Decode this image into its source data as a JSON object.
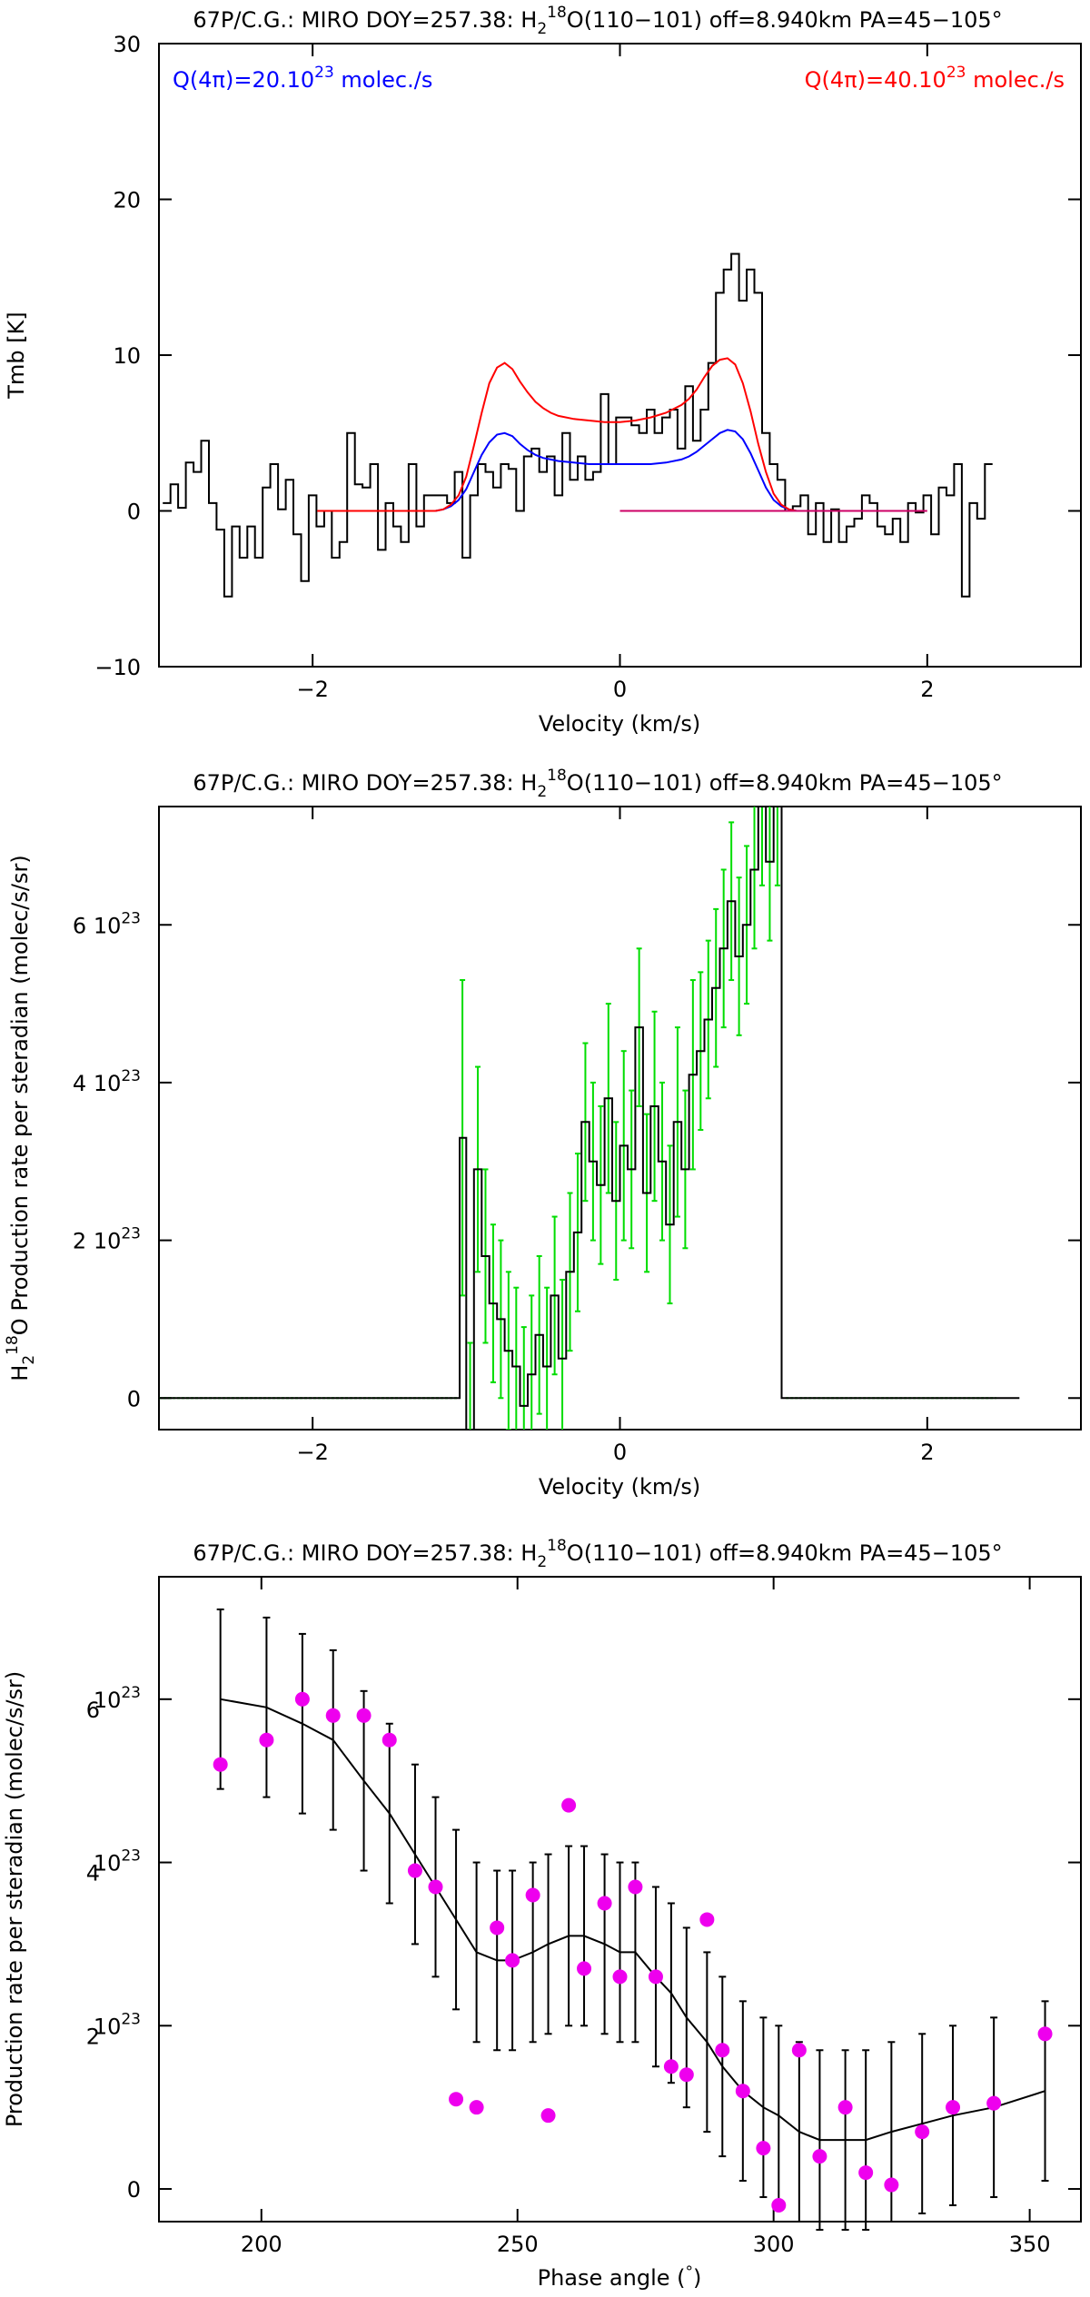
{
  "figure": {
    "title_prefix": "67P/C.G.: MIRO DOY=257.38: H",
    "title_sub": "2",
    "title_sup": "18",
    "title_suffix": "O(110−101) off=8.940km PA=45−105°"
  },
  "chart_data": [
    {
      "type": "line",
      "xlabel": "Velocity (km/s)",
      "ylabel": "Tmb [K]",
      "xlim": [
        -3,
        3
      ],
      "ylim": [
        -10,
        30
      ],
      "xticks": [
        -2,
        0,
        2
      ],
      "xtick_labels": [
        "−2",
        "0",
        "2"
      ],
      "yticks": [
        -10,
        0,
        10,
        20,
        30
      ],
      "ytick_labels": [
        "−10",
        "0",
        "10",
        "20",
        "30"
      ],
      "annotations": [
        {
          "base": "Q(4π)=20.10",
          "sup": "23",
          "rest": " molec./s",
          "color": "#0000ff"
        },
        {
          "base": "Q(4π)=40.10",
          "sup": "23",
          "rest": " molec./s",
          "color": "#ff0000"
        }
      ],
      "series": [
        {
          "style": "step",
          "color": "#000000",
          "x": [
            -2.95,
            -2.9,
            -2.85,
            -2.8,
            -2.75,
            -2.7,
            -2.65,
            -2.6,
            -2.55,
            -2.5,
            -2.45,
            -2.4,
            -2.35,
            -2.3,
            -2.25,
            -2.2,
            -2.15,
            -2.1,
            -2.05,
            -2.0,
            -1.95,
            -1.9,
            -1.85,
            -1.8,
            -1.75,
            -1.7,
            -1.65,
            -1.6,
            -1.55,
            -1.5,
            -1.45,
            -1.4,
            -1.35,
            -1.3,
            -1.25,
            -1.2,
            -1.15,
            -1.1,
            -1.05,
            -1.0,
            -0.95,
            -0.9,
            -0.85,
            -0.8,
            -0.75,
            -0.7,
            -0.65,
            -0.6,
            -0.55,
            -0.5,
            -0.45,
            -0.4,
            -0.35,
            -0.3,
            -0.25,
            -0.2,
            -0.15,
            -0.1,
            -0.05,
            0.0,
            0.05,
            0.1,
            0.15,
            0.2,
            0.25,
            0.3,
            0.35,
            0.4,
            0.45,
            0.5,
            0.55,
            0.6,
            0.65,
            0.7,
            0.75,
            0.8,
            0.85,
            0.9,
            0.95,
            1.0,
            1.05,
            1.1,
            1.15,
            1.2,
            1.25,
            1.3,
            1.35,
            1.4,
            1.45,
            1.5,
            1.55,
            1.6,
            1.65,
            1.7,
            1.75,
            1.8,
            1.85,
            1.9,
            1.95,
            2.0,
            2.05,
            2.1,
            2.15,
            2.2,
            2.25,
            2.3,
            2.35,
            2.4
          ],
          "values": [
            0.5,
            1.7,
            0.2,
            3.1,
            2.5,
            4.5,
            0.5,
            -1.2,
            -5.5,
            -1.0,
            -3.0,
            -1.0,
            -3.0,
            1.5,
            3.0,
            0.1,
            2.0,
            -1.5,
            -4.5,
            1.0,
            -1.0,
            0.0,
            -3.0,
            -2.0,
            5.0,
            1.7,
            1.5,
            3.0,
            -2.5,
            0.5,
            -1.0,
            -2.0,
            3.0,
            -1.0,
            1.0,
            1.0,
            1.0,
            0.5,
            2.5,
            -3.0,
            1.0,
            3.0,
            2.5,
            1.5,
            3.0,
            2.7,
            0.0,
            3.5,
            4.0,
            2.5,
            3.5,
            1.0,
            5.0,
            2.0,
            3.5,
            2.0,
            2.5,
            7.5,
            3.0,
            6.0,
            6.0,
            5.5,
            5.0,
            6.5,
            5.0,
            6.0,
            6.5,
            4.0,
            8.0,
            4.5,
            6.5,
            9.5,
            14.0,
            15.5,
            16.5,
            13.5,
            15.5,
            14.0,
            5.0,
            3.0,
            2.0,
            0.0,
            0.3,
            1.0,
            -1.5,
            0.5,
            -2.0,
            0.1,
            -2.0,
            -1.0,
            -0.5,
            1.0,
            0.5,
            -1.0,
            -1.5,
            -0.5,
            -2.0,
            0.5,
            -0.1,
            1.0,
            -1.5,
            1.5,
            1.0,
            3.0,
            -5.5,
            0.5,
            -0.5,
            3.0
          ]
        },
        {
          "style": "line",
          "color": "#0000ff",
          "x": [
            -1.2,
            -1.15,
            -1.1,
            -1.05,
            -1.0,
            -0.95,
            -0.9,
            -0.85,
            -0.8,
            -0.75,
            -0.7,
            -0.65,
            -0.6,
            -0.55,
            -0.5,
            -0.45,
            -0.4,
            -0.3,
            -0.2,
            -0.1,
            0.0,
            0.1,
            0.2,
            0.3,
            0.4,
            0.45,
            0.5,
            0.55,
            0.6,
            0.65,
            0.7,
            0.75,
            0.8,
            0.85,
            0.9,
            0.95,
            1.0,
            1.05,
            1.1,
            1.15,
            1.2
          ],
          "values": [
            0.0,
            0.1,
            0.3,
            0.7,
            1.4,
            2.5,
            3.6,
            4.4,
            4.9,
            5.0,
            4.8,
            4.3,
            3.9,
            3.6,
            3.4,
            3.3,
            3.2,
            3.1,
            3.0,
            3.0,
            3.0,
            3.0,
            3.0,
            3.1,
            3.3,
            3.5,
            3.8,
            4.2,
            4.6,
            5.0,
            5.2,
            5.1,
            4.6,
            3.7,
            2.6,
            1.5,
            0.7,
            0.3,
            0.1,
            0.0,
            0.0
          ]
        },
        {
          "style": "line",
          "color": "#ff0000",
          "x": [
            -1.2,
            -1.15,
            -1.1,
            -1.05,
            -1.0,
            -0.95,
            -0.9,
            -0.85,
            -0.8,
            -0.75,
            -0.7,
            -0.65,
            -0.6,
            -0.55,
            -0.5,
            -0.45,
            -0.4,
            -0.3,
            -0.2,
            -0.1,
            0.0,
            0.1,
            0.2,
            0.3,
            0.4,
            0.45,
            0.5,
            0.55,
            0.6,
            0.65,
            0.7,
            0.75,
            0.8,
            0.85,
            0.9,
            0.95,
            1.0,
            1.05,
            1.1,
            1.15,
            1.2
          ],
          "values": [
            0.0,
            0.1,
            0.4,
            1.0,
            2.2,
            4.2,
            6.3,
            8.2,
            9.2,
            9.5,
            9.1,
            8.3,
            7.6,
            7.0,
            6.6,
            6.3,
            6.1,
            5.9,
            5.8,
            5.7,
            5.7,
            5.8,
            6.0,
            6.3,
            6.8,
            7.2,
            7.8,
            8.6,
            9.3,
            9.7,
            9.8,
            9.4,
            8.2,
            6.4,
            4.3,
            2.5,
            1.1,
            0.4,
            0.1,
            0.0,
            0.0
          ]
        },
        {
          "style": "line",
          "color": "#ff0000",
          "x": [
            -1.97,
            -1.2
          ],
          "values": [
            0.0,
            0.0
          ]
        },
        {
          "style": "line",
          "color": "#cc0066",
          "x": [
            0.0,
            2.0
          ],
          "values": [
            0.0,
            0.0
          ]
        }
      ]
    },
    {
      "type": "line",
      "xlabel": "Velocity (km/s)",
      "ylabel_pre": "H",
      "ylabel_sub": "2",
      "ylabel_sup": "18",
      "ylabel_post": "O Production rate per steradian (molec/s/sr)",
      "xlim": [
        -3,
        3
      ],
      "ylim": [
        -0.4,
        7.5
      ],
      "xticks": [
        -2,
        0,
        2
      ],
      "xtick_labels": [
        "−2",
        "0",
        "2"
      ],
      "yticks": [
        0,
        2,
        4,
        6
      ],
      "ytick_labels": [
        {
          "pre": "0",
          "sup": ""
        },
        {
          "pre": "2 10",
          "sup": "23"
        },
        {
          "pre": "4 10",
          "sup": "23"
        },
        {
          "pre": "6 10",
          "sup": "23"
        }
      ],
      "series": [
        {
          "style": "step",
          "color": "#000000",
          "x": [
            -2.95,
            -2.5,
            -2.0,
            -1.5,
            -1.06,
            -1.025,
            -0.975,
            -0.925,
            -0.875,
            -0.825,
            -0.775,
            -0.725,
            -0.675,
            -0.625,
            -0.575,
            -0.525,
            -0.475,
            -0.425,
            -0.375,
            -0.325,
            -0.275,
            -0.225,
            -0.175,
            -0.125,
            -0.075,
            -0.025,
            0.025,
            0.075,
            0.125,
            0.175,
            0.225,
            0.275,
            0.325,
            0.375,
            0.425,
            0.475,
            0.525,
            0.575,
            0.625,
            0.675,
            0.725,
            0.775,
            0.825,
            0.875,
            0.925,
            0.975,
            1.025,
            1.08,
            1.5,
            2.0,
            2.4
          ],
          "values": [
            0,
            0,
            0,
            0,
            0,
            3.3,
            -0.5,
            2.9,
            1.8,
            1.2,
            1.0,
            0.6,
            0.4,
            -0.1,
            0.3,
            0.8,
            0.4,
            1.3,
            0.5,
            1.6,
            2.1,
            3.5,
            3.0,
            2.7,
            3.8,
            2.5,
            3.2,
            2.9,
            4.7,
            2.6,
            3.7,
            3.0,
            2.2,
            3.5,
            2.9,
            4.1,
            4.4,
            4.8,
            5.2,
            5.7,
            6.3,
            5.6,
            6.0,
            6.7,
            7.5,
            6.8,
            7.5,
            0,
            0,
            0,
            0
          ]
        }
      ],
      "errorbars": {
        "color": "#00dd00",
        "x": [
          -1.025,
          -0.975,
          -0.925,
          -0.875,
          -0.825,
          -0.775,
          -0.725,
          -0.675,
          -0.625,
          -0.575,
          -0.525,
          -0.475,
          -0.425,
          -0.375,
          -0.325,
          -0.275,
          -0.225,
          -0.175,
          -0.125,
          -0.075,
          -0.025,
          0.025,
          0.075,
          0.125,
          0.175,
          0.225,
          0.275,
          0.325,
          0.375,
          0.425,
          0.475,
          0.525,
          0.575,
          0.625,
          0.675,
          0.725,
          0.775,
          0.825,
          0.875,
          0.925,
          0.975,
          1.025
        ],
        "center": [
          3.3,
          -0.5,
          2.9,
          1.8,
          1.2,
          1.0,
          0.6,
          0.4,
          -0.1,
          0.3,
          0.8,
          0.4,
          1.3,
          0.5,
          1.6,
          2.1,
          3.5,
          3.0,
          2.7,
          3.8,
          2.5,
          3.2,
          2.9,
          4.7,
          2.6,
          3.7,
          3.0,
          2.2,
          3.5,
          2.9,
          4.1,
          4.4,
          4.8,
          5.2,
          5.7,
          6.3,
          5.6,
          6.0,
          6.7,
          7.5,
          6.8,
          7.5
        ],
        "err": [
          2.0,
          1.2,
          1.3,
          1.1,
          1.0,
          1.0,
          1.0,
          1.0,
          1.0,
          1.0,
          1.0,
          1.0,
          1.0,
          1.0,
          1.0,
          1.0,
          1.0,
          1.0,
          1.0,
          1.2,
          1.0,
          1.2,
          1.0,
          1.0,
          1.0,
          1.2,
          1.0,
          1.0,
          1.2,
          1.0,
          1.2,
          1.0,
          1.0,
          1.0,
          1.0,
          1.0,
          1.0,
          1.0,
          1.0,
          1.0,
          1.0,
          1.0
        ]
      },
      "baseline": {
        "color": "#00dd00",
        "segments": [
          [
            -3,
            -1.06
          ],
          [
            1.08,
            2.45
          ]
        ]
      }
    },
    {
      "type": "scatter",
      "xlabel_pre": "Phase angle (",
      "xlabel_deg": "°",
      "xlabel_post": ")",
      "ylabel": "Production rate per steradian (molec/s/sr)",
      "xlim": [
        180,
        360
      ],
      "ylim": [
        -0.4,
        7.5
      ],
      "xticks": [
        200,
        250,
        300,
        350
      ],
      "xtick_labels": [
        "200",
        "250",
        "300",
        "350"
      ],
      "yticks": [
        0,
        2,
        4,
        6
      ],
      "ytick_labels": [
        {
          "pre": "0",
          "sup": "",
          "ghost": ""
        },
        {
          "pre": "10",
          "sup": "23",
          "ghost": "2"
        },
        {
          "pre": "10",
          "sup": "23",
          "ghost": "4"
        },
        {
          "pre": "10",
          "sup": "23",
          "ghost": "6"
        }
      ],
      "points": {
        "color": "#ee00ee",
        "x": [
          192,
          201,
          208,
          214,
          220,
          225,
          230,
          234,
          238,
          242,
          246,
          249,
          253,
          256,
          260,
          263,
          267,
          270,
          273,
          277,
          280,
          283,
          287,
          290,
          294,
          298,
          301,
          305,
          309,
          314,
          318,
          323,
          329,
          335,
          343,
          353
        ],
        "y": [
          5.2,
          5.5,
          6.0,
          5.8,
          5.8,
          5.5,
          3.9,
          3.7,
          1.1,
          1.0,
          3.2,
          2.8,
          3.6,
          0.9,
          4.7,
          2.7,
          3.5,
          2.6,
          3.7,
          2.6,
          1.5,
          1.4,
          3.3,
          1.7,
          1.2,
          0.5,
          -0.2,
          1.7,
          0.4,
          1.0,
          0.2,
          0.05,
          0.7,
          1.0,
          1.05,
          1.9
        ]
      },
      "fit": {
        "color": "#000000",
        "x": [
          192,
          201,
          208,
          214,
          220,
          225,
          230,
          234,
          238,
          242,
          246,
          249,
          253,
          256,
          260,
          263,
          267,
          270,
          273,
          277,
          280,
          283,
          287,
          290,
          294,
          298,
          301,
          305,
          309,
          314,
          318,
          323,
          329,
          335,
          343,
          353
        ],
        "y": [
          6.0,
          5.9,
          5.7,
          5.5,
          5.0,
          4.6,
          4.1,
          3.7,
          3.3,
          2.9,
          2.8,
          2.8,
          2.9,
          3.0,
          3.1,
          3.1,
          3.0,
          2.9,
          2.9,
          2.6,
          2.4,
          2.1,
          1.8,
          1.5,
          1.2,
          1.0,
          0.9,
          0.7,
          0.6,
          0.6,
          0.6,
          0.7,
          0.8,
          0.9,
          1.0,
          1.2
        ],
        "err": [
          1.1,
          1.1,
          1.1,
          1.1,
          1.1,
          1.1,
          1.1,
          1.1,
          1.1,
          1.1,
          1.1,
          1.1,
          1.1,
          1.1,
          1.1,
          1.1,
          1.1,
          1.1,
          1.1,
          1.1,
          1.1,
          1.1,
          1.1,
          1.1,
          1.1,
          1.1,
          1.1,
          1.1,
          1.1,
          1.1,
          1.1,
          1.1,
          1.1,
          1.1,
          1.1,
          1.1
        ]
      }
    }
  ]
}
